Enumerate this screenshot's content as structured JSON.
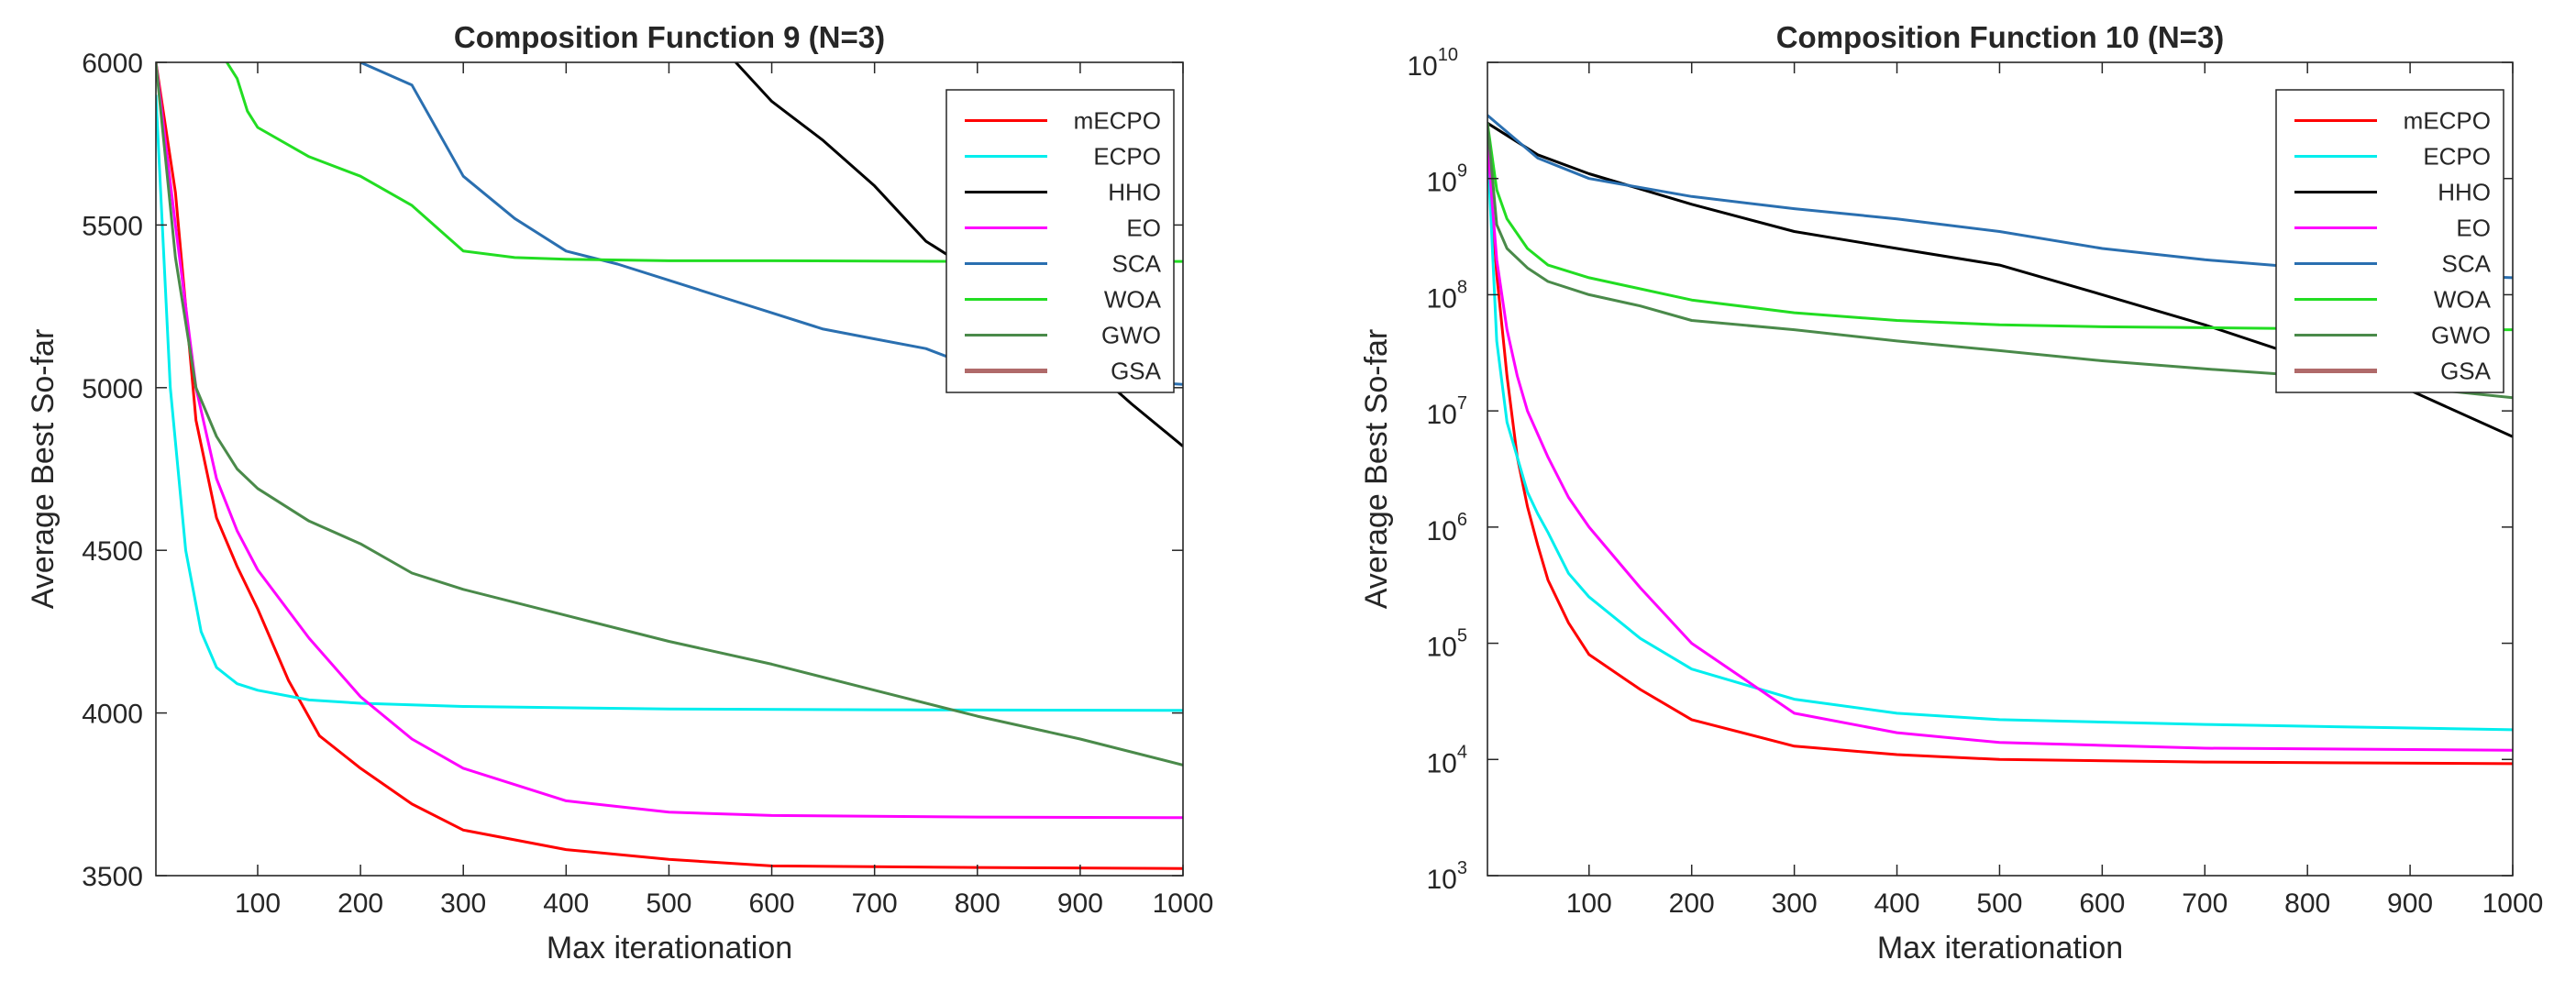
{
  "chart_data": [
    {
      "type": "line",
      "title": "Composition Function 9 (N=3)",
      "xlabel": "Max iterationation",
      "ylabel": "Average Best So-far",
      "xlim": [
        1,
        1000
      ],
      "ylim": [
        3500,
        6000
      ],
      "yscale": "linear",
      "xticks": [
        100,
        200,
        300,
        400,
        500,
        600,
        700,
        800,
        900,
        1000
      ],
      "yticks": [
        3500,
        4000,
        4500,
        5000,
        5500,
        6000
      ],
      "legend": "top-right",
      "series": [
        {
          "name": "mECPO",
          "color": "#ff0000",
          "x": [
            1,
            20,
            40,
            60,
            80,
            100,
            130,
            160,
            200,
            250,
            300,
            400,
            500,
            600,
            800,
            1000
          ],
          "y": [
            6000,
            5600,
            4900,
            4600,
            4450,
            4320,
            4100,
            3930,
            3830,
            3720,
            3640,
            3580,
            3550,
            3530,
            3525,
            3522
          ]
        },
        {
          "name": "ECPO",
          "color": "#00eeee",
          "x": [
            1,
            15,
            30,
            45,
            60,
            80,
            100,
            150,
            200,
            300,
            500,
            700,
            1000
          ],
          "y": [
            5900,
            5000,
            4500,
            4250,
            4140,
            4090,
            4070,
            4040,
            4030,
            4020,
            4012,
            4010,
            4008
          ]
        },
        {
          "name": "HHO",
          "color": "#000000",
          "x": [
            565,
            600,
            650,
            700,
            750,
            800,
            850,
            900,
            950,
            1000
          ],
          "y": [
            6000,
            5880,
            5760,
            5620,
            5450,
            5350,
            5200,
            5090,
            4950,
            4820
          ]
        },
        {
          "name": "EO",
          "color": "#ff00ff",
          "x": [
            1,
            20,
            40,
            60,
            80,
            100,
            150,
            200,
            250,
            300,
            400,
            500,
            600,
            800,
            1000
          ],
          "y": [
            6000,
            5500,
            5000,
            4720,
            4560,
            4440,
            4230,
            4050,
            3920,
            3830,
            3730,
            3695,
            3685,
            3680,
            3678
          ]
        },
        {
          "name": "SCA",
          "color": "#2a6fb0",
          "x": [
            200,
            250,
            300,
            350,
            400,
            450,
            500,
            550,
            600,
            650,
            700,
            750,
            800,
            850,
            900,
            950,
            1000
          ],
          "y": [
            6000,
            5930,
            5650,
            5520,
            5420,
            5380,
            5330,
            5280,
            5230,
            5180,
            5150,
            5120,
            5060,
            5050,
            5030,
            5020,
            5010
          ]
        },
        {
          "name": "WOA",
          "color": "#22dd22",
          "x": [
            70,
            80,
            90,
            100,
            150,
            200,
            250,
            300,
            350,
            400,
            500,
            600,
            800,
            1000
          ],
          "y": [
            6000,
            5950,
            5850,
            5800,
            5710,
            5650,
            5560,
            5420,
            5400,
            5395,
            5390,
            5390,
            5388,
            5388
          ]
        },
        {
          "name": " GWO",
          "color": "#4a8a4a",
          "x": [
            1,
            20,
            40,
            60,
            80,
            100,
            150,
            200,
            250,
            300,
            400,
            500,
            600,
            700,
            800,
            900,
            1000
          ],
          "y": [
            6000,
            5400,
            5000,
            4850,
            4750,
            4690,
            4590,
            4520,
            4430,
            4380,
            4300,
            4220,
            4150,
            4070,
            3990,
            3920,
            3840
          ]
        },
        {
          "name": "GSA",
          "color": "#b06a6a",
          "x": [],
          "y": []
        }
      ]
    },
    {
      "type": "line",
      "title": "Composition Function 10 (N=3)",
      "xlabel": "Max iterationation",
      "ylabel": "Average Best So-far",
      "xlim": [
        1,
        1000
      ],
      "ylim": [
        1000,
        10000000000
      ],
      "yscale": "log",
      "xticks": [
        100,
        200,
        300,
        400,
        500,
        600,
        700,
        800,
        900,
        1000
      ],
      "yticks": [
        1000,
        10000,
        100000,
        1000000,
        10000000,
        100000000,
        1000000000,
        10000000000
      ],
      "ytick_labels": [
        {
          "base": "10",
          "exp": "3"
        },
        {
          "base": "10",
          "exp": "4"
        },
        {
          "base": "10",
          "exp": "5"
        },
        {
          "base": "10",
          "exp": "6"
        },
        {
          "base": "10",
          "exp": "7"
        },
        {
          "base": "10",
          "exp": "8"
        },
        {
          "base": "10",
          "exp": "9"
        },
        {
          "base": "10",
          "exp": "10"
        }
      ],
      "legend": "top-right",
      "series": [
        {
          "name": "mECPO",
          "color": "#ff0000",
          "x": [
            1,
            10,
            20,
            30,
            40,
            50,
            60,
            80,
            100,
            150,
            200,
            300,
            400,
            500,
            700,
            1000
          ],
          "y": [
            2000000000,
            150000000,
            20000000,
            4000000,
            1500000,
            700000,
            350000,
            150000,
            80000,
            40000,
            22000,
            13000,
            11000,
            10000,
            9500,
            9200
          ]
        },
        {
          "name": "ECPO",
          "color": "#00eeee",
          "x": [
            1,
            10,
            20,
            30,
            40,
            50,
            60,
            80,
            100,
            150,
            200,
            300,
            400,
            500,
            700,
            1000
          ],
          "y": [
            2000000000,
            40000000,
            8000000,
            4000000,
            2000000,
            1300000,
            900000,
            400000,
            250000,
            110000,
            60000,
            33000,
            25000,
            22000,
            20000,
            18000
          ]
        },
        {
          "name": "HHO",
          "color": "#000000",
          "x": [
            1,
            50,
            100,
            200,
            300,
            400,
            500,
            600,
            700,
            800,
            900,
            1000
          ],
          "y": [
            3000000000,
            1600000000,
            1100000000,
            600000000,
            350000000,
            250000000,
            180000000,
            100000000,
            55000000,
            28000000,
            15000000,
            6000000
          ]
        },
        {
          "name": "EO",
          "color": "#ff00ff",
          "x": [
            1,
            10,
            20,
            30,
            40,
            60,
            80,
            100,
            150,
            200,
            250,
            300,
            400,
            500,
            700,
            1000
          ],
          "y": [
            2000000000,
            200000000,
            50000000,
            20000000,
            10000000,
            4000000,
            1800000,
            1000000,
            300000,
            100000,
            50000,
            25000,
            17000,
            14000,
            12500,
            12000
          ]
        },
        {
          "name": "SCA",
          "color": "#2a6fb0",
          "x": [
            1,
            50,
            100,
            200,
            300,
            400,
            500,
            600,
            700,
            800,
            900,
            1000
          ],
          "y": [
            3500000000,
            1500000000,
            1000000000,
            700000000,
            550000000,
            450000000,
            350000000,
            250000000,
            200000000,
            170000000,
            150000000,
            140000000
          ]
        },
        {
          "name": "WOA",
          "color": "#22dd22",
          "x": [
            1,
            10,
            20,
            40,
            60,
            100,
            200,
            300,
            400,
            500,
            600,
            700,
            800,
            900,
            1000
          ],
          "y": [
            3000000000,
            800000000,
            450000000,
            250000000,
            180000000,
            140000000,
            90000000,
            70000000,
            60000000,
            55000000,
            53000000,
            52000000,
            51000000,
            50000000,
            50000000
          ]
        },
        {
          "name": " GWO",
          "color": "#4a8a4a",
          "x": [
            1,
            10,
            20,
            40,
            60,
            100,
            150,
            200,
            300,
            400,
            500,
            600,
            700,
            800,
            900,
            1000
          ],
          "y": [
            3000000000,
            400000000,
            250000000,
            170000000,
            130000000,
            100000000,
            80000000,
            60000000,
            50000000,
            40000000,
            33000000,
            27000000,
            23000000,
            20000000,
            16000000,
            13000000
          ]
        },
        {
          "name": "GSA",
          "color": "#b06a6a",
          "x": [],
          "y": []
        }
      ]
    }
  ]
}
